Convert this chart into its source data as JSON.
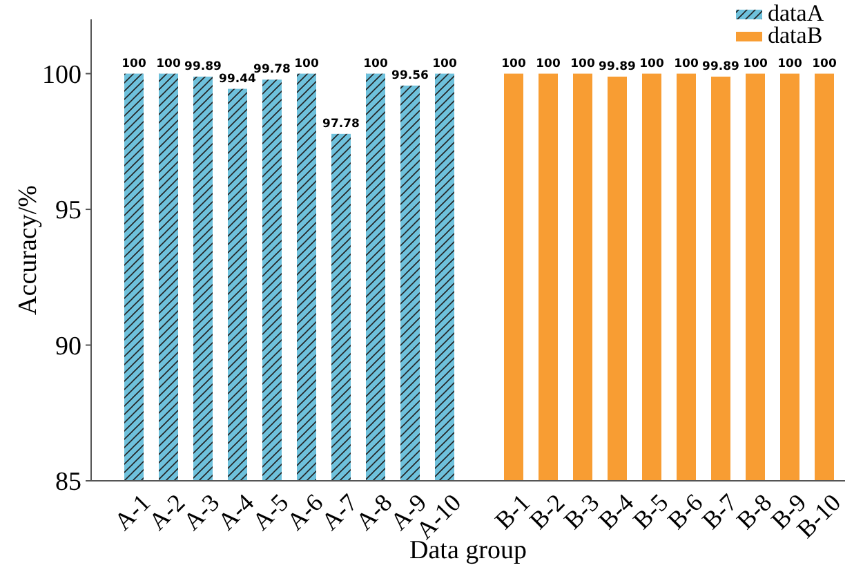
{
  "chart_data": {
    "type": "bar",
    "xlabel": "Data group",
    "ylabel": "Accuracy/%",
    "categories": [
      "A-1",
      "A-2",
      "A-3",
      "A-4",
      "A-5",
      "A-6",
      "A-7",
      "A-8",
      "A-9",
      "A-10",
      null,
      "B-1",
      "B-2",
      "B-3",
      "B-4",
      "B-5",
      "B-6",
      "B-7",
      "B-8",
      "B-9",
      "B-10"
    ],
    "series": [
      {
        "name": "dataA",
        "color": "#6ec1dc",
        "values": [
          100,
          100,
          99.89,
          99.44,
          99.78,
          100,
          97.78,
          100,
          99.56,
          100,
          null,
          null,
          null,
          null,
          null,
          null,
          null,
          null,
          null,
          null,
          null
        ]
      },
      {
        "name": "dataB",
        "color": "#f89d33",
        "values": [
          null,
          null,
          null,
          null,
          null,
          null,
          null,
          null,
          null,
          null,
          null,
          100,
          100,
          100,
          99.89,
          100,
          100,
          99.89,
          100,
          100,
          100
        ]
      }
    ],
    "ylim": [
      85,
      102
    ],
    "yticks": [
      85,
      90,
      95,
      100
    ],
    "grid": false,
    "legend": "top right",
    "data_labels": true
  }
}
